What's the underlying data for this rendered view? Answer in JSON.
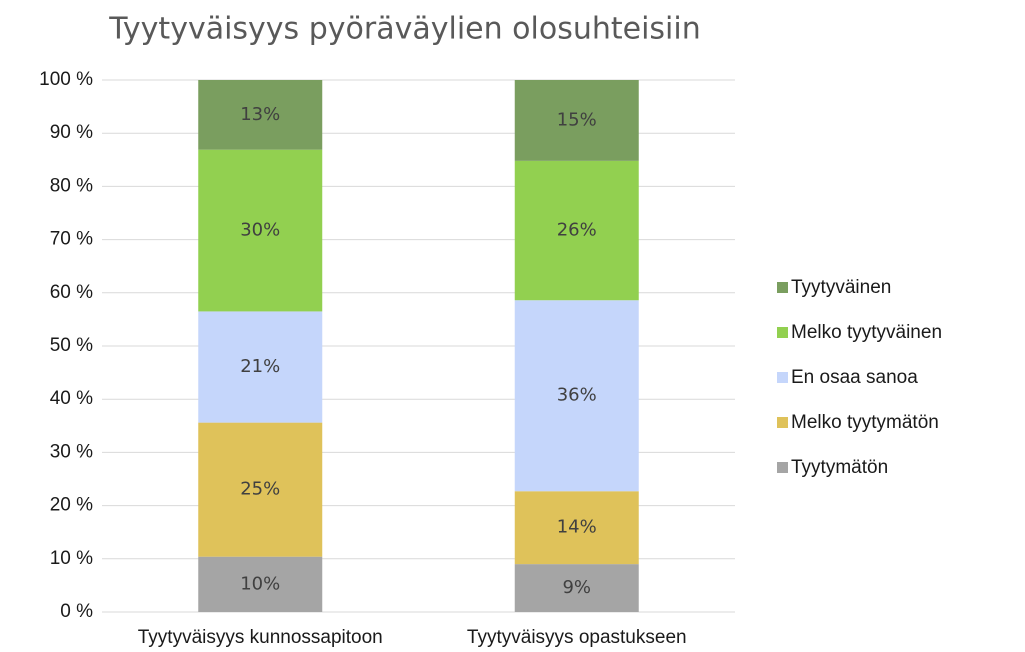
{
  "chart_data": {
    "type": "stacked_bar",
    "title": "Tyytyväisyys pyöräväylien olosuhteisiin",
    "categories": [
      "Tyytyväisyys kunnossapitoon",
      "Tyytyväisyys opastukseen"
    ],
    "series": [
      {
        "name": "Tyytymätön",
        "color": "#a5a5a5",
        "values": [
          10.4,
          9.0
        ],
        "value_labels": [
          "10%",
          "9%"
        ]
      },
      {
        "name": "Melko tyytymätön",
        "color": "#dfc25a",
        "values": [
          25.2,
          13.7
        ],
        "value_labels": [
          "25%",
          "14%"
        ]
      },
      {
        "name": "En osaa sanoa",
        "color": "#c5d6fb",
        "values": [
          20.9,
          35.9
        ],
        "value_labels": [
          "21%",
          "36%"
        ]
      },
      {
        "name": "Melko tyytyväinen",
        "color": "#92d050",
        "values": [
          30.4,
          26.2
        ],
        "value_labels": [
          "30%",
          "26%"
        ]
      },
      {
        "name": "Tyytyväinen",
        "color": "#7a9e5f",
        "values": [
          13.1,
          15.2
        ],
        "value_labels": [
          "13%",
          "15%"
        ]
      }
    ],
    "ylim": [
      0,
      100
    ],
    "yticks": [
      {
        "value": 0,
        "label": "0 %"
      },
      {
        "value": 10,
        "label": "10 %"
      },
      {
        "value": 20,
        "label": "20 %"
      },
      {
        "value": 30,
        "label": "30 %"
      },
      {
        "value": 40,
        "label": "40 %"
      },
      {
        "value": 50,
        "label": "50 %"
      },
      {
        "value": 60,
        "label": "60 %"
      },
      {
        "value": 70,
        "label": "70 %"
      },
      {
        "value": 80,
        "label": "80 %"
      },
      {
        "value": 90,
        "label": "90 %"
      },
      {
        "value": 100,
        "label": "100 %"
      }
    ],
    "grid": true,
    "legend": "right"
  }
}
